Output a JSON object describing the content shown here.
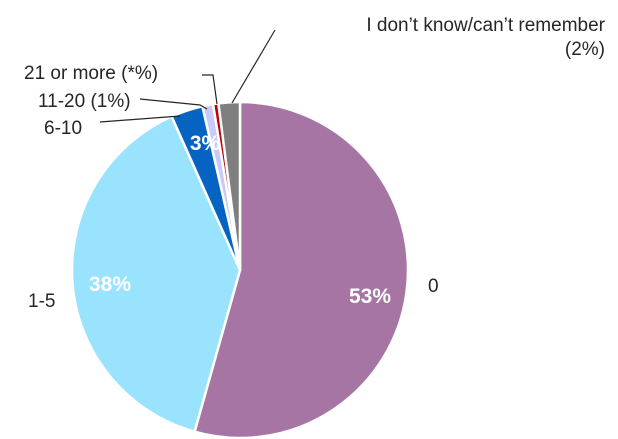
{
  "chart_data": {
    "type": "pie",
    "title": "",
    "start_angle_deg": 0,
    "direction": "clockwise",
    "legend": "none",
    "slices": [
      {
        "label": "0",
        "value": 53,
        "pct_label": "53%",
        "color": "#A775A4"
      },
      {
        "label": "1-5",
        "value": 38,
        "pct_label": "38%",
        "color": "#99E3FE"
      },
      {
        "label": "6-10",
        "value": 3,
        "pct_label": "3%",
        "color": "#0563C2"
      },
      {
        "label": "11-20 (1%)",
        "value": 1,
        "pct_label": "",
        "color": "#C8CBF8"
      },
      {
        "label": "21 or more (*%)",
        "value": 0.5,
        "pct_label": "",
        "color": "#C00000"
      },
      {
        "label": "I don’t know/can’t remember",
        "label_line2": "(2%)",
        "value": 2,
        "pct_label": "",
        "color": "#7F7F7F"
      }
    ]
  }
}
